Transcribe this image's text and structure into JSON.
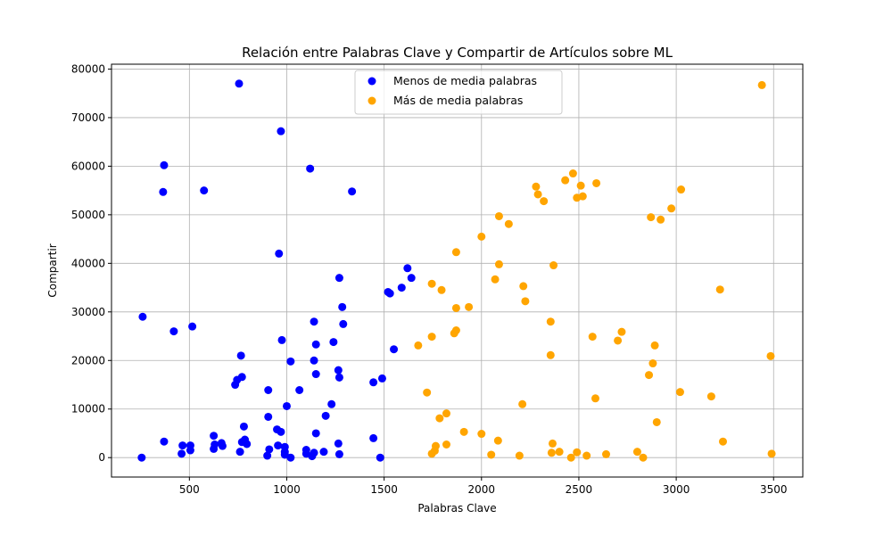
{
  "chart_data": {
    "type": "scatter",
    "title": "Relación entre Palabras Clave y Compartir de Artículos sobre ML",
    "xlabel": "Palabras Clave",
    "ylabel": "Compartir",
    "xlim": [
      100,
      3650
    ],
    "ylim": [
      -4000,
      81000
    ],
    "xticks": [
      500,
      1000,
      1500,
      2000,
      2500,
      3000,
      3500
    ],
    "yticks": [
      0,
      10000,
      20000,
      30000,
      40000,
      50000,
      60000,
      70000,
      80000
    ],
    "grid": true,
    "legend": "top-center",
    "series": [
      {
        "name": "Menos de media palabras",
        "color": "#0000ff",
        "points": [
          [
            755,
            77000
          ],
          [
            970,
            67200
          ],
          [
            370,
            60200
          ],
          [
            1120,
            59500
          ],
          [
            365,
            54700
          ],
          [
            575,
            55000
          ],
          [
            1335,
            54800
          ],
          [
            960,
            42000
          ],
          [
            1620,
            39000
          ],
          [
            1640,
            37000
          ],
          [
            1270,
            37000
          ],
          [
            1590,
            35000
          ],
          [
            1520,
            34100
          ],
          [
            1530,
            33800
          ],
          [
            1285,
            31000
          ],
          [
            260,
            29000
          ],
          [
            1140,
            28000
          ],
          [
            1290,
            27500
          ],
          [
            515,
            27000
          ],
          [
            420,
            26000
          ],
          [
            975,
            24200
          ],
          [
            1150,
            23300
          ],
          [
            1240,
            23800
          ],
          [
            1550,
            22300
          ],
          [
            765,
            21000
          ],
          [
            1020,
            19800
          ],
          [
            1140,
            20000
          ],
          [
            1265,
            18000
          ],
          [
            1150,
            17200
          ],
          [
            770,
            16600
          ],
          [
            1270,
            16500
          ],
          [
            745,
            16000
          ],
          [
            1490,
            16300
          ],
          [
            1445,
            15500
          ],
          [
            735,
            15000
          ],
          [
            905,
            13900
          ],
          [
            1065,
            13900
          ],
          [
            1230,
            11000
          ],
          [
            1000,
            10600
          ],
          [
            1200,
            8600
          ],
          [
            905,
            8400
          ],
          [
            780,
            6400
          ],
          [
            950,
            5800
          ],
          [
            970,
            5300
          ],
          [
            1150,
            5000
          ],
          [
            1445,
            4000
          ],
          [
            625,
            4500
          ],
          [
            785,
            3700
          ],
          [
            370,
            3300
          ],
          [
            770,
            3200
          ],
          [
            795,
            2800
          ],
          [
            665,
            3000
          ],
          [
            630,
            2700
          ],
          [
            670,
            2400
          ],
          [
            465,
            2500
          ],
          [
            505,
            2500
          ],
          [
            1265,
            2900
          ],
          [
            955,
            2500
          ],
          [
            990,
            2200
          ],
          [
            625,
            1800
          ],
          [
            505,
            1500
          ],
          [
            910,
            1700
          ],
          [
            1100,
            1600
          ],
          [
            990,
            1200
          ],
          [
            1140,
            1000
          ],
          [
            1190,
            1200
          ],
          [
            760,
            1200
          ],
          [
            460,
            800
          ],
          [
            990,
            600
          ],
          [
            1270,
            700
          ],
          [
            900,
            400
          ],
          [
            1130,
            300
          ],
          [
            1020,
            0
          ],
          [
            1480,
            0
          ],
          [
            255,
            0
          ],
          [
            1100,
            800
          ]
        ]
      },
      {
        "name": "Más de media palabras",
        "color": "#ffa500",
        "points": [
          [
            3440,
            76700
          ],
          [
            2470,
            58500
          ],
          [
            2280,
            55800
          ],
          [
            2290,
            54200
          ],
          [
            2430,
            57100
          ],
          [
            2510,
            56000
          ],
          [
            2590,
            56500
          ],
          [
            2320,
            52800
          ],
          [
            2490,
            53500
          ],
          [
            2520,
            53800
          ],
          [
            3025,
            55200
          ],
          [
            2975,
            51300
          ],
          [
            2870,
            49500
          ],
          [
            2920,
            49000
          ],
          [
            2090,
            49700
          ],
          [
            2140,
            48100
          ],
          [
            2000,
            45500
          ],
          [
            1870,
            42300
          ],
          [
            2090,
            39800
          ],
          [
            2370,
            39600
          ],
          [
            1745,
            35800
          ],
          [
            1795,
            34500
          ],
          [
            2215,
            35300
          ],
          [
            2070,
            36700
          ],
          [
            3225,
            34600
          ],
          [
            2225,
            32200
          ],
          [
            1870,
            30800
          ],
          [
            1935,
            31000
          ],
          [
            2355,
            28000
          ],
          [
            2720,
            25900
          ],
          [
            2570,
            24900
          ],
          [
            1870,
            26200
          ],
          [
            1860,
            25600
          ],
          [
            1745,
            24900
          ],
          [
            2700,
            24100
          ],
          [
            1675,
            23100
          ],
          [
            2890,
            23100
          ],
          [
            3485,
            20900
          ],
          [
            2355,
            21100
          ],
          [
            2880,
            19400
          ],
          [
            2860,
            17000
          ],
          [
            3020,
            13500
          ],
          [
            1720,
            13400
          ],
          [
            3180,
            12600
          ],
          [
            2585,
            12200
          ],
          [
            2210,
            11000
          ],
          [
            1820,
            9100
          ],
          [
            1785,
            8100
          ],
          [
            2900,
            7300
          ],
          [
            1910,
            5300
          ],
          [
            2000,
            4900
          ],
          [
            2085,
            3500
          ],
          [
            1820,
            2700
          ],
          [
            1765,
            2400
          ],
          [
            3240,
            3300
          ],
          [
            2365,
            2900
          ],
          [
            1760,
            1400
          ],
          [
            1745,
            800
          ],
          [
            2360,
            1000
          ],
          [
            2400,
            1200
          ],
          [
            2490,
            1100
          ],
          [
            2640,
            700
          ],
          [
            2800,
            1200
          ],
          [
            2050,
            600
          ],
          [
            2195,
            400
          ],
          [
            2460,
            0
          ],
          [
            2540,
            400
          ],
          [
            2830,
            0
          ],
          [
            3490,
            800
          ]
        ]
      }
    ]
  }
}
